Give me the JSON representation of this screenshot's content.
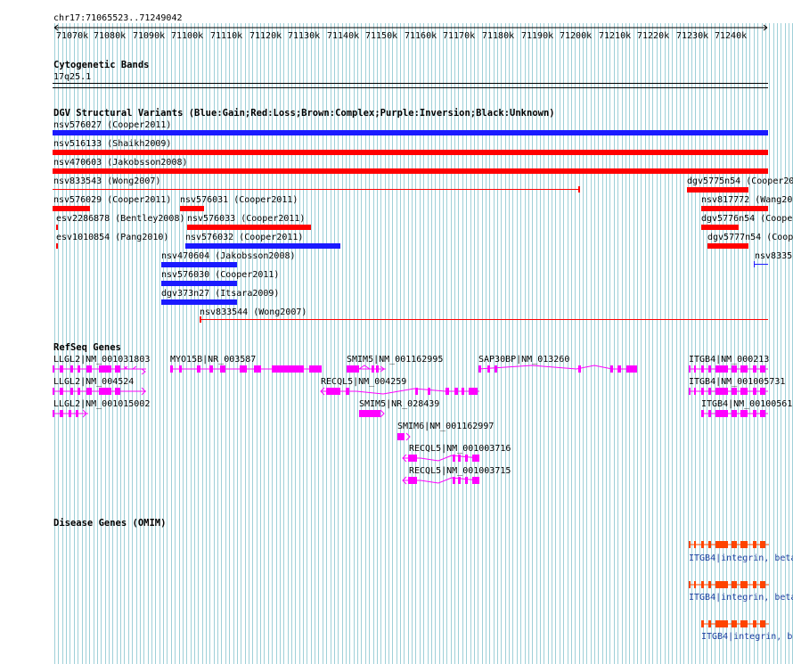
{
  "ruler": {
    "position": "chr17:71065523..71249042",
    "ticks": [
      "71070k",
      "71080k",
      "71090k",
      "71100k",
      "71110k",
      "71120k",
      "71130k",
      "71140k",
      "71150k",
      "71160k",
      "71170k",
      "71180k",
      "71190k",
      "71200k",
      "71210k",
      "71220k",
      "71230k",
      "71240k"
    ]
  },
  "cytoband": {
    "title": "Cytogenetic Bands",
    "band": "17q25.1"
  },
  "dgv": {
    "title": "DGV Structural Variants (Blue:Gain;Red:Loss;Brown:Complex;Purple:Inversion;Black:Unknown)",
    "tracks": [
      {
        "label": "nsv576027 (Cooper2011)",
        "type": "gain"
      },
      {
        "label": "nsv516133 (Shaikh2009)",
        "type": "loss"
      },
      {
        "label": "nsv470603 (Jakobsson2008)",
        "type": "loss"
      },
      {
        "label": "nsv833543 (Wong2007)",
        "type": "loss"
      },
      {
        "label": "dgv5775n54 (Cooper20",
        "type": "loss"
      },
      {
        "label": "nsv576029 (Cooper2011)",
        "type": "loss"
      },
      {
        "label": "nsv576031 (Cooper2011)",
        "type": "loss"
      },
      {
        "label": "nsv817772 (Wang200",
        "type": "loss"
      },
      {
        "label": "esv2286878 (Bentley2008)",
        "type": "loss"
      },
      {
        "label": "nsv576033 (Cooper2011)",
        "type": "loss"
      },
      {
        "label": "dgv5776n54 (Cooper",
        "type": "loss"
      },
      {
        "label": "esv1010854 (Pang2010)",
        "type": "loss"
      },
      {
        "label": "nsv576032 (Cooper2011)",
        "type": "gain"
      },
      {
        "label": "dgv5777n54 (Coop",
        "type": "loss"
      },
      {
        "label": "nsv8335",
        "type": "gain"
      },
      {
        "label": "nsv470604 (Jakobsson2008)",
        "type": "gain"
      },
      {
        "label": "nsv576030 (Cooper2011)",
        "type": "gain"
      },
      {
        "label": "dgv373n27 (Itsara2009)",
        "type": "gain"
      },
      {
        "label": "nsv833544 (Wong2007)",
        "type": "loss"
      }
    ]
  },
  "refseq": {
    "title": "RefSeq Genes",
    "genes": [
      {
        "label": "LLGL2|NM_001031803"
      },
      {
        "label": "MYO15B|NR_003587"
      },
      {
        "label": "SMIM5|NM_001162995"
      },
      {
        "label": "SAP30BP|NM_013260"
      },
      {
        "label": "ITGB4|NM_000213"
      },
      {
        "label": "LLGL2|NM_004524"
      },
      {
        "label": "RECQL5|NM_004259"
      },
      {
        "label": "ITGB4|NM_001005731"
      },
      {
        "label": "LLGL2|NM_001015002"
      },
      {
        "label": "SMIM5|NR_028439"
      },
      {
        "label": "ITGB4|NM_00100561"
      },
      {
        "label": "SMIM6|NM_001162997"
      },
      {
        "label": "RECQL5|NM_001003716"
      },
      {
        "label": "RECQL5|NM_001003715"
      }
    ]
  },
  "omim": {
    "title": "Disease Genes (OMIM)",
    "entries": [
      {
        "label": "ITGB4|integrin, beta"
      },
      {
        "label": "ITGB4|integrin, beta"
      },
      {
        "label": "ITGB4|integrin, be"
      }
    ]
  },
  "colors": {
    "gain": "#1a1aff",
    "loss": "#ff0000",
    "gene": "#ff00ff",
    "omim": "#ff4400",
    "grid": "#9fd0d8"
  }
}
